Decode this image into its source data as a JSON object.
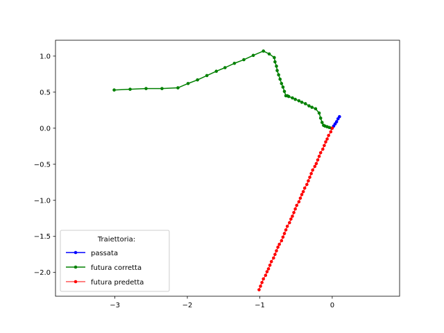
{
  "chart_data": {
    "type": "line",
    "xlim": [
      -3.82,
      0.93
    ],
    "ylim": [
      -2.33,
      1.22
    ],
    "x_ticks": [
      -3,
      -2,
      -1,
      0
    ],
    "x_tick_labels": [
      "−3",
      "−2",
      "−1",
      "0"
    ],
    "y_ticks": [
      1.0,
      0.5,
      0.0,
      -0.5,
      -1.0,
      -1.5,
      -2.0
    ],
    "y_tick_labels": [
      "1.0",
      "0.5",
      "0.0",
      "−0.5",
      "−1.0",
      "−1.5",
      "−2.0"
    ],
    "grid": false,
    "legend": {
      "title": "Traiettoria:",
      "placement": "lower-left"
    },
    "series": [
      {
        "name": "passata",
        "color": "#0000ff",
        "x": [
          0.0,
          0.02,
          0.04,
          0.06,
          0.08,
          0.1
        ],
        "y": [
          0.0,
          0.03,
          0.06,
          0.09,
          0.13,
          0.16
        ]
      },
      {
        "name": "futura corretta",
        "color": "#008000",
        "x": [
          -3.01,
          -2.79,
          -2.57,
          -2.35,
          -2.13,
          -1.99,
          -1.86,
          -1.73,
          -1.6,
          -1.48,
          -1.35,
          -1.22,
          -1.09,
          -0.95,
          -0.87,
          -0.8,
          -0.79,
          -0.77,
          -0.76,
          -0.74,
          -0.72,
          -0.7,
          -0.68,
          -0.66,
          -0.64,
          -0.62,
          -0.6,
          -0.55,
          -0.51,
          -0.46,
          -0.42,
          -0.37,
          -0.32,
          -0.28,
          -0.23,
          -0.18,
          -0.16,
          -0.14,
          -0.12,
          -0.1,
          -0.07,
          -0.04,
          -0.01
        ],
        "y": [
          0.53,
          0.54,
          0.55,
          0.55,
          0.56,
          0.62,
          0.67,
          0.73,
          0.79,
          0.84,
          0.9,
          0.95,
          1.01,
          1.07,
          1.03,
          0.98,
          0.92,
          0.86,
          0.8,
          0.74,
          0.68,
          0.62,
          0.57,
          0.51,
          0.45,
          0.45,
          0.44,
          0.42,
          0.4,
          0.38,
          0.36,
          0.34,
          0.31,
          0.29,
          0.27,
          0.21,
          0.14,
          0.08,
          0.04,
          0.03,
          0.02,
          0.01,
          0.0
        ]
      },
      {
        "name": "futura predetta",
        "color": "#ff0000",
        "x": [
          0.0,
          -0.02,
          -0.05,
          -0.07,
          -0.09,
          -0.11,
          -0.13,
          -0.16,
          -0.18,
          -0.2,
          -0.22,
          -0.24,
          -0.27,
          -0.29,
          -0.31,
          -0.33,
          -0.35,
          -0.38,
          -0.4,
          -0.42,
          -0.44,
          -0.46,
          -0.49,
          -0.51,
          -0.53,
          -0.55,
          -0.57,
          -0.59,
          -0.62,
          -0.64,
          -0.66,
          -0.68,
          -0.7,
          -0.73,
          -0.75,
          -0.77,
          -0.79,
          -0.81,
          -0.84,
          -0.86,
          -0.88,
          -0.9,
          -0.92,
          -0.95,
          -0.97,
          -0.99,
          -1.01
        ],
        "y": [
          0.0,
          -0.05,
          -0.1,
          -0.15,
          -0.19,
          -0.24,
          -0.29,
          -0.34,
          -0.39,
          -0.44,
          -0.49,
          -0.53,
          -0.58,
          -0.63,
          -0.68,
          -0.73,
          -0.78,
          -0.83,
          -0.88,
          -0.92,
          -0.97,
          -1.02,
          -1.07,
          -1.12,
          -1.17,
          -1.22,
          -1.26,
          -1.31,
          -1.36,
          -1.41,
          -1.46,
          -1.51,
          -1.56,
          -1.61,
          -1.65,
          -1.7,
          -1.75,
          -1.8,
          -1.85,
          -1.9,
          -1.95,
          -1.99,
          -2.04,
          -2.09,
          -2.14,
          -2.19,
          -2.24
        ]
      }
    ]
  }
}
